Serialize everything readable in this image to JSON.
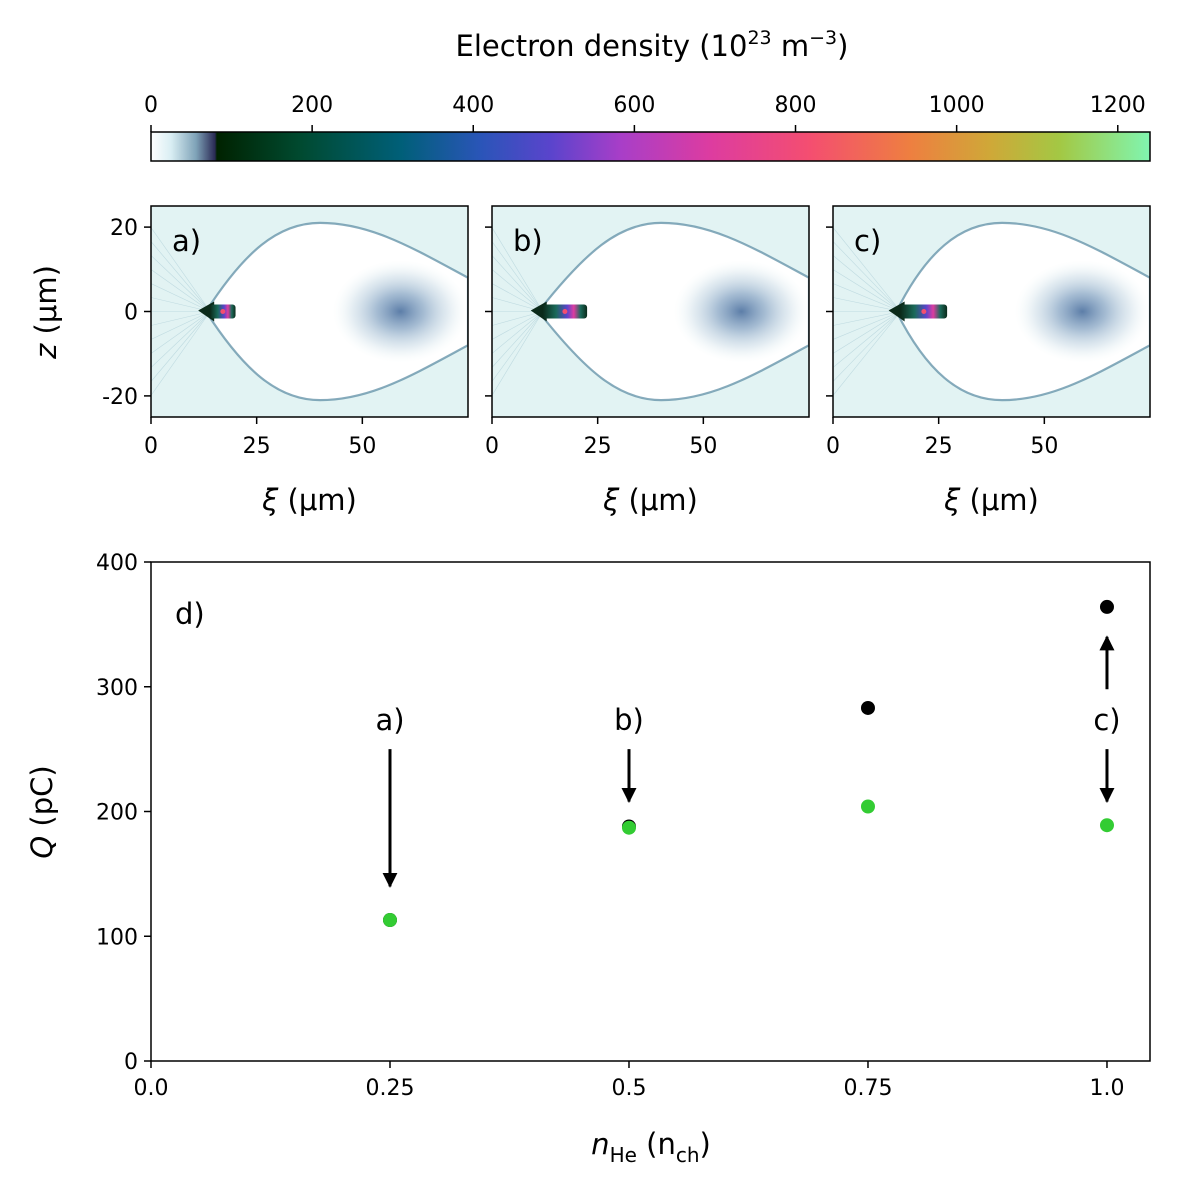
{
  "colorbar": {
    "title_main": "Electron density (10",
    "title_exp": "23",
    "title_unit": " m",
    "title_unit_exp": "−3",
    "title_close": ")",
    "ticks": [
      "0",
      "200",
      "400",
      "600",
      "800",
      "1000",
      "1200"
    ],
    "tick_values": [
      0,
      200,
      400,
      600,
      800,
      1000,
      1200
    ],
    "range": [
      0,
      1240
    ]
  },
  "panels": [
    {
      "label": "a)",
      "x_ticks": [
        "0",
        "25",
        "50"
      ],
      "x_tick_values": [
        0,
        25,
        50
      ],
      "xlim": [
        0,
        75
      ],
      "y_ticks": [
        "20",
        "0",
        "-20"
      ],
      "y_tick_values": [
        20,
        0,
        -20
      ],
      "ylim": [
        -25,
        25
      ],
      "bunch_tail": 14,
      "bunch_head": 20,
      "peak_density": 1000
    },
    {
      "label": "b)",
      "x_ticks": [
        "0",
        "25",
        "50"
      ],
      "x_tick_values": [
        0,
        25,
        50
      ],
      "xlim": [
        0,
        75
      ],
      "bunch_tail": 12,
      "bunch_head": 22.5,
      "peak_density": 1100
    },
    {
      "label": "c)",
      "x_ticks": [
        "0",
        "25",
        "50"
      ],
      "x_tick_values": [
        0,
        25,
        50
      ],
      "xlim": [
        0,
        75
      ],
      "bunch_tail": 16,
      "bunch_head": 27,
      "peak_density": 1150
    }
  ],
  "panel_axes": {
    "xlabel_sym": "ξ",
    "xlabel_unit": " (μm)",
    "ylabel_sym": "z",
    "ylabel_unit": " (μm)"
  },
  "chart_data": {
    "type": "scatter",
    "panel_label": "d)",
    "xlabel_sym": "n",
    "xlabel_sub": "He",
    "xlabel_mid": " (n",
    "xlabel_sub2": "ch",
    "xlabel_close": ")",
    "ylabel_sym": "Q",
    "ylabel_unit": " (pC)",
    "xlim": [
      0.0,
      1.045
    ],
    "ylim": [
      0,
      400
    ],
    "x_ticks": [
      "0.0",
      "0.25",
      "0.5",
      "0.75",
      "1.0"
    ],
    "x_tick_values": [
      0.0,
      0.25,
      0.5,
      0.75,
      1.0
    ],
    "y_ticks": [
      "0",
      "100",
      "200",
      "300",
      "400"
    ],
    "y_tick_values": [
      0,
      100,
      200,
      300,
      400
    ],
    "series": [
      {
        "name": "total",
        "color": "#000000",
        "x": [
          0.25,
          0.5,
          0.75,
          1.0
        ],
        "y": [
          113,
          188,
          283,
          364
        ]
      },
      {
        "name": "selected",
        "color": "#33cc33",
        "x": [
          0.25,
          0.5,
          0.75,
          1.0
        ],
        "y": [
          113,
          187,
          204,
          189
        ]
      }
    ],
    "annotations": [
      {
        "text": "a)",
        "x": 0.25,
        "y_text": 275,
        "arrows": [
          {
            "from": 250,
            "to": 140
          }
        ]
      },
      {
        "text": "b)",
        "x": 0.5,
        "y_text": 275,
        "arrows": [
          {
            "from": 250,
            "to": 208
          }
        ]
      },
      {
        "text": "c)",
        "x": 1.0,
        "y_text": 275,
        "arrows": [
          {
            "from": 250,
            "to": 208
          },
          {
            "from": 298,
            "to": 340
          }
        ]
      }
    ]
  }
}
